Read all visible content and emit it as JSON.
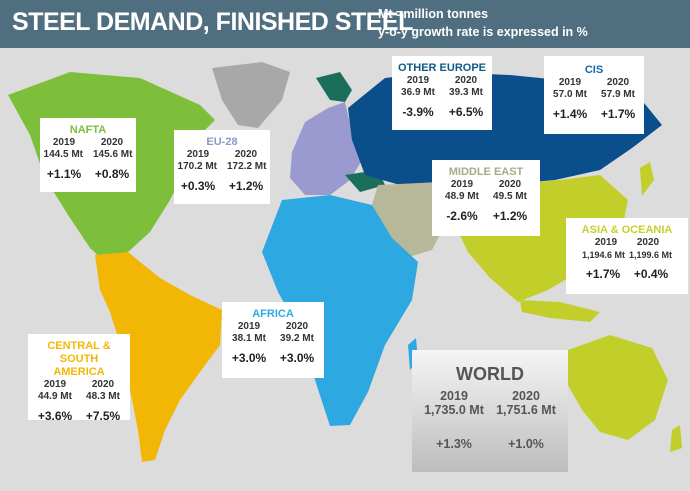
{
  "header": {
    "title": "STEEL DEMAND, FINISHED STEEL",
    "note_units": "Mt =million tonnes",
    "note_growth": "y-o-y growth rate is expressed in %"
  },
  "colors": {
    "header_bg": "#4f6f80",
    "nafta": "#7dbf3a",
    "eu28": "#9a9ad0",
    "other_europe": "#1b6f5a",
    "cis": "#0a4e8c",
    "middle_east": "#b7b89a",
    "asia_oceania": "#c2cf2a",
    "africa": "#2ea8e0",
    "central_south_america": "#f2b705",
    "name_nafta": "#7dbf3a",
    "name_eu28": "#8f96c8",
    "name_other_europe": "#0d5b86",
    "name_cis": "#1565b0",
    "name_middle_east": "#a8a986",
    "name_asia": "#c9cf2a",
    "name_africa": "#2ea8e0",
    "name_csa": "#f2b705"
  },
  "regions": {
    "nafta": {
      "name": "NAFTA",
      "y1": "2019",
      "y2": "2020",
      "v1": "144.5 Mt",
      "v2": "145.6 Mt",
      "g1": "+1.1%",
      "g2": "+0.8%"
    },
    "eu28": {
      "name": "EU-28",
      "y1": "2019",
      "y2": "2020",
      "v1": "170.2 Mt",
      "v2": "172.2 Mt",
      "g1": "+0.3%",
      "g2": "+1.2%"
    },
    "other_europe": {
      "name": "OTHER EUROPE",
      "y1": "2019",
      "y2": "2020",
      "v1": "36.9 Mt",
      "v2": "39.3 Mt",
      "g1": "-3.9%",
      "g2": "+6.5%"
    },
    "cis": {
      "name": "CIS",
      "y1": "2019",
      "y2": "2020",
      "v1": "57.0 Mt",
      "v2": "57.9 Mt",
      "g1": "+1.4%",
      "g2": "+1.7%"
    },
    "middle_east": {
      "name": "MIDDLE EAST",
      "y1": "2019",
      "y2": "2020",
      "v1": "48.9 Mt",
      "v2": "49.5 Mt",
      "g1": "-2.6%",
      "g2": "+1.2%"
    },
    "asia_oceania": {
      "name": "ASIA & OCEANIA",
      "y1": "2019",
      "y2": "2020",
      "v1": "1,194.6 Mt",
      "v2": "1,199.6 Mt",
      "g1": "+1.7%",
      "g2": "+0.4%"
    },
    "africa": {
      "name": "AFRICA",
      "y1": "2019",
      "y2": "2020",
      "v1": "38.1 Mt",
      "v2": "39.2 Mt",
      "g1": "+3.0%",
      "g2": "+3.0%"
    },
    "central_south_america": {
      "name_line1": "CENTRAL & SOUTH",
      "name_line2": "AMERICA",
      "y1": "2019",
      "y2": "2020",
      "v1": "44.9 Mt",
      "v2": "48.3 Mt",
      "g1": "+3.6%",
      "g2": "+7.5%"
    }
  },
  "world": {
    "name": "WORLD",
    "y1": "2019",
    "y2": "2020",
    "v1": "1,735.0 Mt",
    "v2": "1,751.6 Mt",
    "g1": "+1.3%",
    "g2": "+1.0%"
  }
}
